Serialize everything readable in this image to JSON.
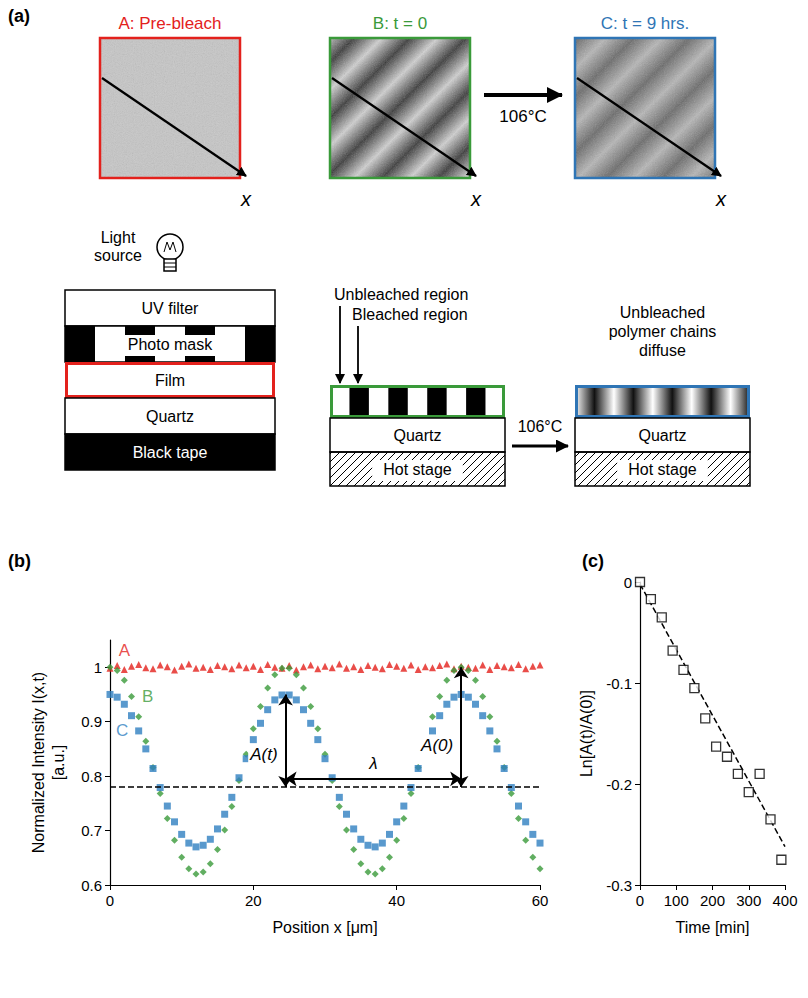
{
  "diagram": {
    "title": "(a)",
    "images": [
      {
        "title": "A: Pre-bleach",
        "color": "#e3211c",
        "axis_label": "x"
      },
      {
        "title": "B: t = 0",
        "color": "#3a9a3a",
        "axis_label": "x"
      },
      {
        "title": "C: t = 9 hrs.",
        "color": "#2f75b5",
        "axis_label": "x"
      }
    ],
    "heating": "106°C",
    "setup": {
      "source": "Light source",
      "layers": [
        "UV filter",
        "Photo mask",
        "Film",
        "Quartz",
        "Black tape"
      ]
    },
    "bleached_sample": {
      "labels": [
        "Unbleached region",
        "Bleached region"
      ],
      "layers": [
        "Quartz",
        "Hot stage"
      ]
    },
    "annealed_sample": {
      "caption": "Unbleached polymer chains diffuse",
      "layers": [
        "Quartz",
        "Hot stage"
      ]
    }
  },
  "chart_data": [
    {
      "type": "scatter",
      "title": "(b)",
      "xlabel": "Position x [μm]",
      "ylabel": "Normalized Intensity I(x,t) [a.u.]",
      "xlim": [
        0,
        60
      ],
      "xticks": [
        0,
        20,
        40,
        60
      ],
      "ylim": [
        0.6,
        1.05
      ],
      "yticks": [
        0.6,
        0.7,
        0.8,
        0.9,
        1
      ],
      "grid": false,
      "x": [
        0,
        1,
        2,
        3,
        4,
        5,
        6,
        7,
        8,
        9,
        10,
        11,
        12,
        13,
        14,
        15,
        16,
        17,
        18,
        19,
        20,
        21,
        22,
        23,
        24,
        25,
        26,
        27,
        28,
        29,
        30,
        31,
        32,
        33,
        34,
        35,
        36,
        37,
        38,
        39,
        40,
        41,
        42,
        43,
        44,
        45,
        46,
        47,
        48,
        49,
        50,
        51,
        52,
        53,
        54,
        55,
        56,
        57,
        58,
        59,
        60
      ],
      "series": [
        {
          "name": "A",
          "color": "#e3211c",
          "marker": "triangle",
          "values": [
            0.998,
            1.003,
            0.996,
            1.002,
            1.005,
            0.999,
            0.997,
            1.004,
            1.001,
            0.995,
            1.002,
            1.006,
            0.998,
            1.0,
            0.996,
            1.003,
            1.001,
            0.997,
            1.004,
            0.999,
            1.002,
            0.996,
            1.005,
            1.0,
            0.998,
            1.003,
            0.995,
            1.001,
            1.004,
            0.997,
            1.002,
            0.999,
            1.006,
            0.998,
            1.001,
            0.996,
            1.003,
            1.0,
            0.997,
            1.005,
            1.002,
            0.998,
            1.004,
            0.996,
            1.001,
            0.999,
            1.003,
            1.006,
            0.997,
            1.002,
            1.0,
            0.998,
            1.004,
            0.996,
            1.003,
            1.001,
            0.999,
            1.005,
            0.997,
            1.002,
            1.004
          ]
        },
        {
          "name": "B",
          "color": "#3a9a3a",
          "marker": "diamond",
          "values": [
            1.0,
            0.994,
            0.976,
            0.946,
            0.909,
            0.864,
            0.816,
            0.768,
            0.722,
            0.682,
            0.651,
            0.63,
            0.62,
            0.624,
            0.639,
            0.665,
            0.701,
            0.744,
            0.792,
            0.84,
            0.887,
            0.928,
            0.962,
            0.986,
            0.998,
            0.998,
            0.986,
            0.962,
            0.928,
            0.887,
            0.84,
            0.792,
            0.744,
            0.701,
            0.665,
            0.639,
            0.624,
            0.62,
            0.63,
            0.651,
            0.682,
            0.722,
            0.768,
            0.816,
            0.864,
            0.909,
            0.946,
            0.976,
            0.994,
            1.0,
            0.994,
            0.976,
            0.946,
            0.909,
            0.864,
            0.816,
            0.768,
            0.722,
            0.682,
            0.651,
            0.63
          ]
        },
        {
          "name": "C",
          "color": "#2f7fc1",
          "marker": "square",
          "values": [
            0.95,
            0.945,
            0.932,
            0.911,
            0.883,
            0.85,
            0.814,
            0.779,
            0.745,
            0.716,
            0.693,
            0.677,
            0.67,
            0.673,
            0.684,
            0.703,
            0.73,
            0.761,
            0.797,
            0.832,
            0.867,
            0.897,
            0.922,
            0.94,
            0.949,
            0.949,
            0.94,
            0.922,
            0.897,
            0.867,
            0.832,
            0.797,
            0.761,
            0.73,
            0.703,
            0.684,
            0.673,
            0.67,
            0.677,
            0.693,
            0.716,
            0.745,
            0.779,
            0.814,
            0.85,
            0.883,
            0.911,
            0.932,
            0.945,
            0.95,
            0.945,
            0.932,
            0.911,
            0.883,
            0.85,
            0.814,
            0.779,
            0.745,
            0.716,
            0.693,
            0.677
          ]
        }
      ],
      "baseline": {
        "value": 0.78,
        "line_style": "dashed"
      },
      "annotations": [
        {
          "text": "A(t)",
          "x": 24.5,
          "values": [
            0.78,
            0.95
          ]
        },
        {
          "text": "A(0)",
          "x": 49,
          "values": [
            0.78,
            1.0
          ]
        },
        {
          "text": "λ",
          "x": [
            24.5,
            49
          ],
          "value": 0.795
        }
      ]
    },
    {
      "type": "scatter",
      "title": "(c)",
      "xlabel": "Time [min]",
      "ylabel": "Ln[A(t)/A(0)]",
      "xlim": [
        0,
        400
      ],
      "xticks": [
        0,
        100,
        200,
        300,
        400
      ],
      "ylim": [
        -0.3,
        0
      ],
      "yticks": [
        -0.3,
        -0.2,
        -0.1,
        0
      ],
      "grid": false,
      "color": "#000000",
      "marker": "square",
      "x": [
        0,
        30,
        60,
        90,
        120,
        150,
        180,
        210,
        240,
        270,
        300,
        330,
        360,
        390
      ],
      "values": [
        0,
        -0.017,
        -0.035,
        -0.068,
        -0.087,
        -0.105,
        -0.135,
        -0.163,
        -0.173,
        -0.19,
        -0.208,
        -0.19,
        -0.235,
        -0.275
      ],
      "fit": {
        "x": [
          0,
          400
        ],
        "values": [
          -0.002,
          -0.262
        ],
        "line_style": "dashed"
      }
    }
  ]
}
